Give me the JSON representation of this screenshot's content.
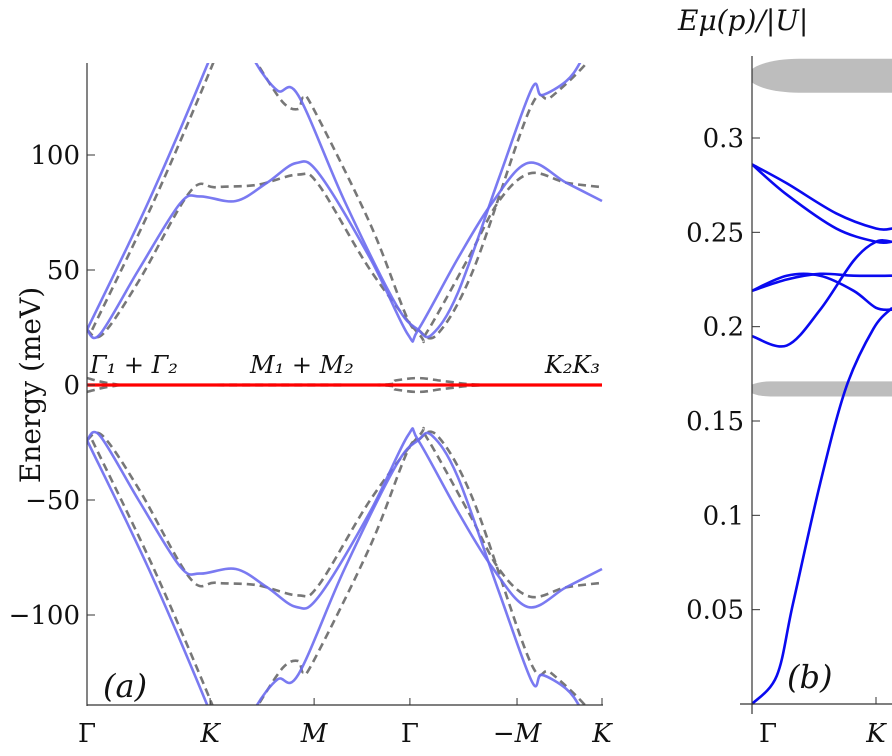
{
  "chart_data": [
    {
      "type": "line",
      "panel_label": "(a)",
      "ylabel": "Energy (meV)",
      "ylim": [
        -139,
        140
      ],
      "yticks": [
        100,
        50,
        0,
        -50,
        -100
      ],
      "ytick_labels": [
        "100",
        "50",
        "0",
        "−50",
        "−100"
      ],
      "xlim": [
        0,
        1
      ],
      "xticks": [
        0,
        0.239,
        0.441,
        0.627,
        0.835,
        1
      ],
      "xtick_labels": [
        "Γ",
        "K",
        "M",
        "Γ",
        "−M",
        "K"
      ],
      "annotations": [
        "Γ₁ + Γ₂",
        "M₁ + M₂",
        "K₂K₃"
      ],
      "colors": {
        "solid": "#6b6bf0",
        "dashed": "#777777",
        "zero": "#ff0000"
      },
      "series": [
        {
          "name": "solid-1",
          "style": "solid",
          "points": [
            [
              0,
              24
            ],
            [
              0.12,
              80
            ],
            [
              0.235,
              140
            ],
            [
              0.26,
              156
            ]
          ]
        },
        {
          "name": "solid-2",
          "style": "solid",
          "points": [
            [
              0,
              24
            ],
            [
              0.025,
              22
            ],
            [
              0.1,
              50
            ],
            [
              0.181,
              79
            ],
            [
              0.22,
              82
            ],
            [
              0.289,
              80
            ],
            [
              0.35,
              88
            ],
            [
              0.406,
              96.5
            ],
            [
              0.45,
              92
            ],
            [
              0.55,
              55
            ],
            [
              0.623,
              22
            ],
            [
              0.643,
              24
            ],
            [
              0.72,
              55
            ],
            [
              0.786,
              79
            ],
            [
              0.856,
              96.5
            ],
            [
              0.93,
              88
            ],
            [
              1,
              80
            ]
          ]
        },
        {
          "name": "solid-3",
          "style": "solid",
          "points": [
            [
              0.31,
              152
            ],
            [
              0.328,
              140
            ],
            [
              0.37,
              128
            ],
            [
              0.41,
              126
            ],
            [
              0.5,
              80
            ],
            [
              0.6,
              35
            ],
            [
              0.643,
              24
            ],
            [
              0.67,
              22
            ],
            [
              0.72,
              40
            ],
            [
              0.8,
              90
            ],
            [
              0.864,
              129
            ],
            [
              0.883,
              126
            ],
            [
              0.93,
              132
            ],
            [
              0.957,
              140
            ],
            [
              0.98,
              152
            ]
          ]
        },
        {
          "name": "solid-1-neg",
          "style": "solid",
          "points": [
            [
              0,
              -24
            ],
            [
              0.12,
              -80
            ],
            [
              0.235,
              -140
            ],
            [
              0.26,
              -156
            ]
          ]
        },
        {
          "name": "solid-2-neg",
          "style": "solid",
          "points": [
            [
              0,
              -24
            ],
            [
              0.025,
              -22
            ],
            [
              0.1,
              -50
            ],
            [
              0.181,
              -79
            ],
            [
              0.22,
              -82
            ],
            [
              0.289,
              -80
            ],
            [
              0.35,
              -88
            ],
            [
              0.406,
              -96.5
            ],
            [
              0.45,
              -92
            ],
            [
              0.55,
              -55
            ],
            [
              0.623,
              -22
            ],
            [
              0.643,
              -24
            ],
            [
              0.72,
              -55
            ],
            [
              0.786,
              -79
            ],
            [
              0.856,
              -96.5
            ],
            [
              0.93,
              -88
            ],
            [
              1,
              -80
            ]
          ]
        },
        {
          "name": "solid-3-neg",
          "style": "solid",
          "points": [
            [
              0.31,
              -152
            ],
            [
              0.328,
              -140
            ],
            [
              0.37,
              -128
            ],
            [
              0.41,
              -126
            ],
            [
              0.5,
              -80
            ],
            [
              0.6,
              -35
            ],
            [
              0.643,
              -24
            ],
            [
              0.67,
              -22
            ],
            [
              0.72,
              -40
            ],
            [
              0.8,
              -90
            ],
            [
              0.864,
              -129
            ],
            [
              0.883,
              -126
            ],
            [
              0.93,
              -132
            ],
            [
              0.957,
              -140
            ],
            [
              0.98,
              -152
            ]
          ]
        },
        {
          "name": "dashed-1",
          "style": "dashed",
          "points": [
            [
              0.01,
              24
            ],
            [
              0.13,
              80
            ],
            [
              0.245,
              140
            ],
            [
              0.265,
              154
            ]
          ]
        },
        {
          "name": "dashed-2",
          "style": "dashed",
          "points": [
            [
              0,
              24
            ],
            [
              0.03,
              22
            ],
            [
              0.1,
              45
            ],
            [
              0.2,
              84
            ],
            [
              0.25,
              86
            ],
            [
              0.33,
              87
            ],
            [
              0.41,
              91.5
            ],
            [
              0.45,
              87
            ],
            [
              0.55,
              50
            ],
            [
              0.645,
              22
            ],
            [
              0.66,
              23
            ],
            [
              0.74,
              55
            ],
            [
              0.8,
              80
            ],
            [
              0.86,
              92
            ],
            [
              0.93,
              88
            ],
            [
              1,
              86
            ]
          ]
        },
        {
          "name": "dashed-3",
          "style": "dashed",
          "points": [
            [
              0.31,
              148
            ],
            [
              0.33,
              140
            ],
            [
              0.38,
              123
            ],
            [
              0.41,
              120
            ],
            [
              0.42,
              125
            ],
            [
              0.44,
              120
            ],
            [
              0.55,
              70
            ],
            [
              0.62,
              30
            ],
            [
              0.643,
              24
            ],
            [
              0.68,
              22
            ],
            [
              0.75,
              50
            ],
            [
              0.86,
              120
            ],
            [
              0.9,
              125
            ],
            [
              0.97,
              140
            ],
            [
              0.99,
              150
            ]
          ]
        },
        {
          "name": "dashed-1-neg",
          "style": "dashed",
          "points": [
            [
              0.01,
              -24
            ],
            [
              0.13,
              -80
            ],
            [
              0.245,
              -140
            ],
            [
              0.265,
              -154
            ]
          ]
        },
        {
          "name": "dashed-2-neg",
          "style": "dashed",
          "points": [
            [
              0,
              -24
            ],
            [
              0.03,
              -22
            ],
            [
              0.1,
              -45
            ],
            [
              0.2,
              -84
            ],
            [
              0.25,
              -86
            ],
            [
              0.33,
              -87
            ],
            [
              0.41,
              -91.5
            ],
            [
              0.45,
              -87
            ],
            [
              0.55,
              -50
            ],
            [
              0.645,
              -22
            ],
            [
              0.66,
              -23
            ],
            [
              0.74,
              -55
            ],
            [
              0.8,
              -80
            ],
            [
              0.86,
              -92
            ],
            [
              0.93,
              -88
            ],
            [
              1,
              -86
            ]
          ]
        },
        {
          "name": "dashed-3-neg",
          "style": "dashed",
          "points": [
            [
              0.31,
              -148
            ],
            [
              0.33,
              -140
            ],
            [
              0.38,
              -123
            ],
            [
              0.41,
              -120
            ],
            [
              0.42,
              -125
            ],
            [
              0.44,
              -120
            ],
            [
              0.55,
              -70
            ],
            [
              0.62,
              -30
            ],
            [
              0.643,
              -24
            ],
            [
              0.68,
              -22
            ],
            [
              0.75,
              -50
            ],
            [
              0.86,
              -120
            ],
            [
              0.9,
              -125
            ],
            [
              0.97,
              -140
            ],
            [
              0.99,
              -150
            ]
          ]
        },
        {
          "name": "dashed-zero-up",
          "style": "dashed",
          "points": [
            [
              0,
              3
            ],
            [
              0.05,
              0.5
            ],
            [
              0.12,
              0
            ],
            [
              0.55,
              0
            ],
            [
              0.6,
              2
            ],
            [
              0.645,
              3
            ],
            [
              0.7,
              1.5
            ],
            [
              0.78,
              0
            ],
            [
              1,
              0
            ]
          ]
        },
        {
          "name": "dashed-zero-down",
          "style": "dashed",
          "points": [
            [
              0,
              -3
            ],
            [
              0.05,
              -0.5
            ],
            [
              0.12,
              0
            ],
            [
              0.55,
              0
            ],
            [
              0.6,
              -2
            ],
            [
              0.645,
              -3
            ],
            [
              0.7,
              -1.5
            ],
            [
              0.78,
              0
            ],
            [
              1,
              0
            ]
          ]
        },
        {
          "name": "zero-line",
          "style": "zero",
          "points": [
            [
              0,
              0
            ],
            [
              1,
              0
            ]
          ]
        }
      ]
    },
    {
      "type": "line",
      "panel_label": "(b)",
      "ylabel": "Eμ(p)/|U|",
      "ylabel_main": "E",
      "ylabel_sub": "μ",
      "ylabel_rest": "(p)/|U|",
      "ylim": [
        0,
        0.34
      ],
      "yticks": [
        0.05,
        0.1,
        0.15,
        0.2,
        0.25,
        0.3
      ],
      "ytick_labels": [
        "0.05",
        "0.1",
        "0.15",
        "0.2",
        "0.25",
        "0.3"
      ],
      "xticks": [
        0,
        1
      ],
      "xtick_labels": [
        "Γ",
        "K"
      ],
      "colors": {
        "line": "#0a0af0",
        "continuum": "#bdbdbd"
      },
      "continuum_bands": [
        {
          "name": "upper-continuum",
          "center": 0.333,
          "halfwidth": 0.009
        },
        {
          "name": "lower-continuum",
          "center": 0.167,
          "halfwidth": 0.004
        }
      ],
      "series": [
        {
          "name": "band-1",
          "points": [
            [
              0,
              0
            ],
            [
              0.2,
              0.015
            ],
            [
              0.33,
              0.053
            ],
            [
              0.55,
              0.117
            ],
            [
              0.76,
              0.168
            ],
            [
              0.98,
              0.199
            ],
            [
              1.13,
              0.21
            ]
          ]
        },
        {
          "name": "band-2",
          "points": [
            [
              0,
              0.195
            ],
            [
              0.28,
              0.19
            ],
            [
              0.55,
              0.209
            ],
            [
              0.82,
              0.235
            ],
            [
              1.0,
              0.245
            ],
            [
              1.13,
              0.245
            ]
          ]
        },
        {
          "name": "band-3",
          "points": [
            [
              0,
              0.219
            ],
            [
              0.28,
              0.225
            ],
            [
              0.55,
              0.228
            ],
            [
              0.82,
              0.227
            ],
            [
              1.13,
              0.227
            ]
          ]
        },
        {
          "name": "band-4",
          "points": [
            [
              0,
              0.219
            ],
            [
              0.28,
              0.227
            ],
            [
              0.55,
              0.227
            ],
            [
              0.82,
              0.219
            ],
            [
              1.0,
              0.21
            ],
            [
              1.13,
              0.209
            ]
          ]
        },
        {
          "name": "band-5",
          "points": [
            [
              0,
              0.286
            ],
            [
              0.28,
              0.276
            ],
            [
              0.68,
              0.26
            ],
            [
              1.0,
              0.252
            ],
            [
              1.13,
              0.252
            ]
          ]
        },
        {
          "name": "band-6",
          "points": [
            [
              0,
              0.286
            ],
            [
              0.28,
              0.27
            ],
            [
              0.68,
              0.252
            ],
            [
              1.0,
              0.245
            ],
            [
              1.13,
              0.245
            ]
          ]
        }
      ]
    }
  ]
}
